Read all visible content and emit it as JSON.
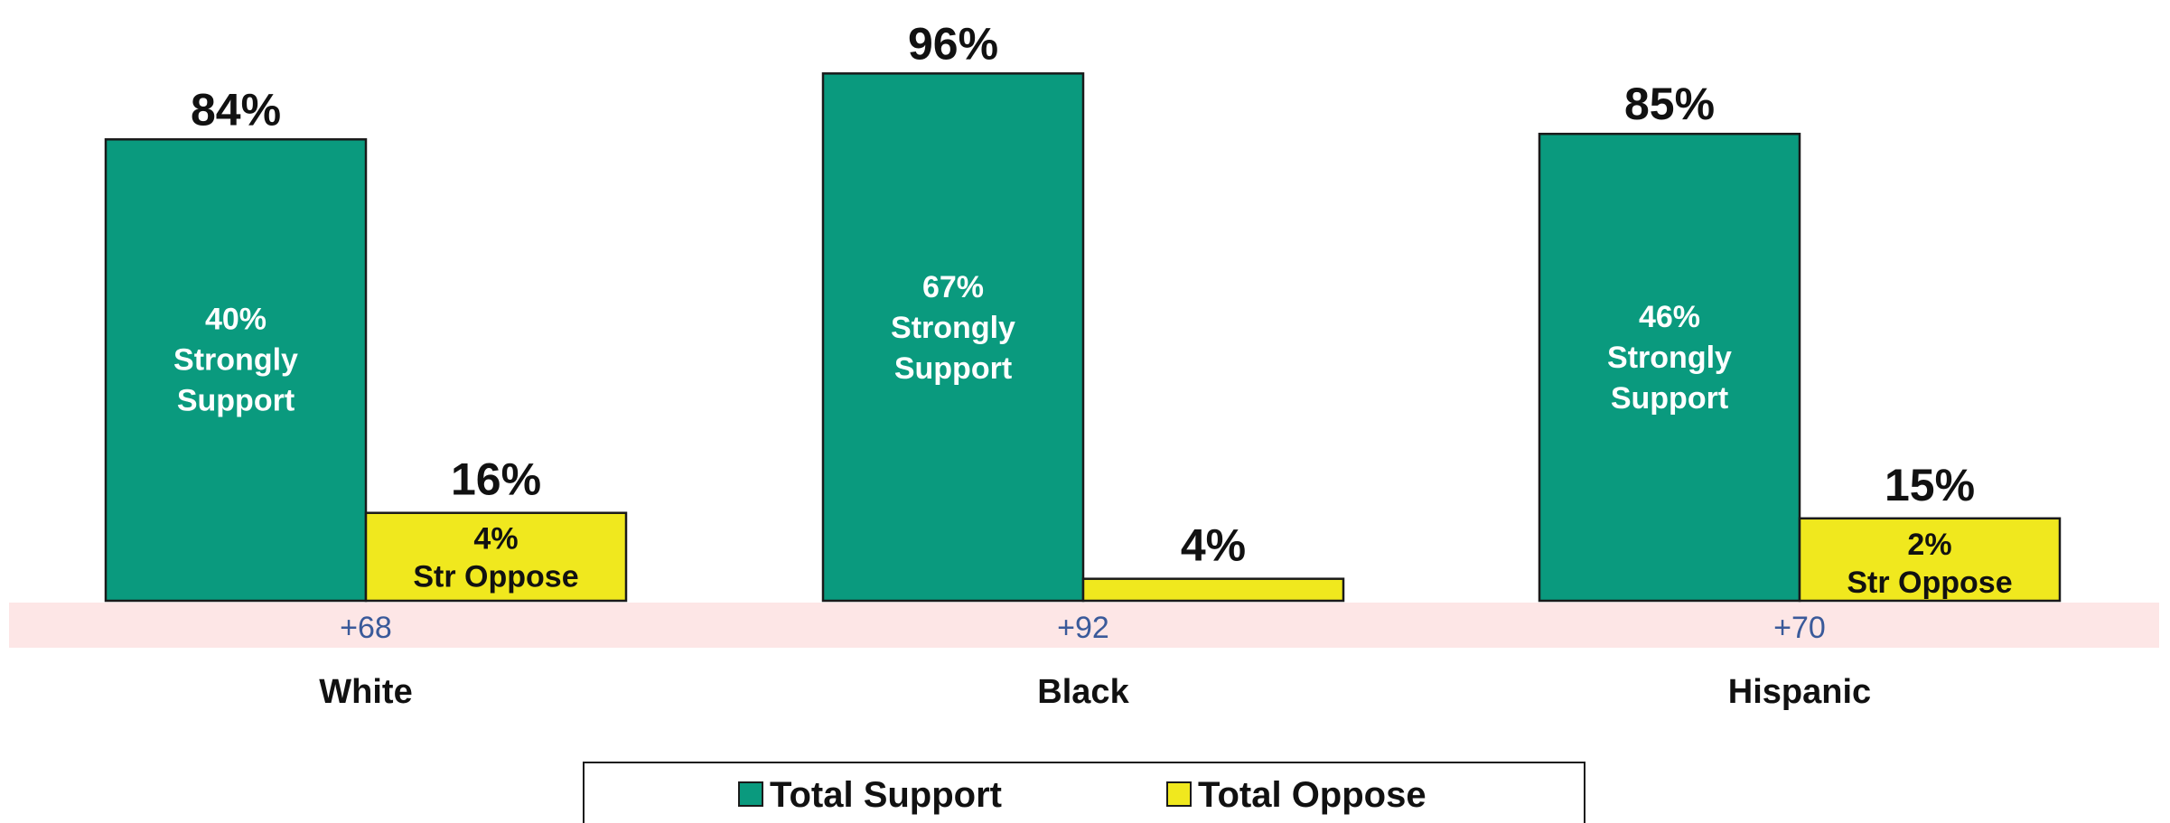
{
  "chart_data": {
    "type": "bar",
    "categories": [
      "White",
      "Black",
      "Hispanic"
    ],
    "series": [
      {
        "name": "Total Support",
        "values": [
          84,
          96,
          85
        ],
        "labels": [
          "84%",
          "96%",
          "85%"
        ],
        "color": "#0a9a7e"
      },
      {
        "name": "Total Oppose",
        "values": [
          16,
          4,
          15
        ],
        "labels": [
          "16%",
          "4%",
          "15%"
        ],
        "color": "#f0e81e"
      }
    ],
    "strong_support": [
      "40%",
      "67%",
      "46%"
    ],
    "strong_support_text": [
      "Strongly",
      "Support"
    ],
    "strong_oppose": [
      "4%",
      "",
      "2%"
    ],
    "strong_oppose_text": "Str Oppose",
    "net_margin": [
      "+68",
      "+92",
      "+70"
    ],
    "ylim": [
      0,
      100
    ],
    "colors": {
      "support": "#0a9a7e",
      "oppose": "#f0e81e",
      "margin_band": "#fde6e6",
      "margin_text": "#3a5a9a"
    },
    "legend_position": "bottom"
  }
}
